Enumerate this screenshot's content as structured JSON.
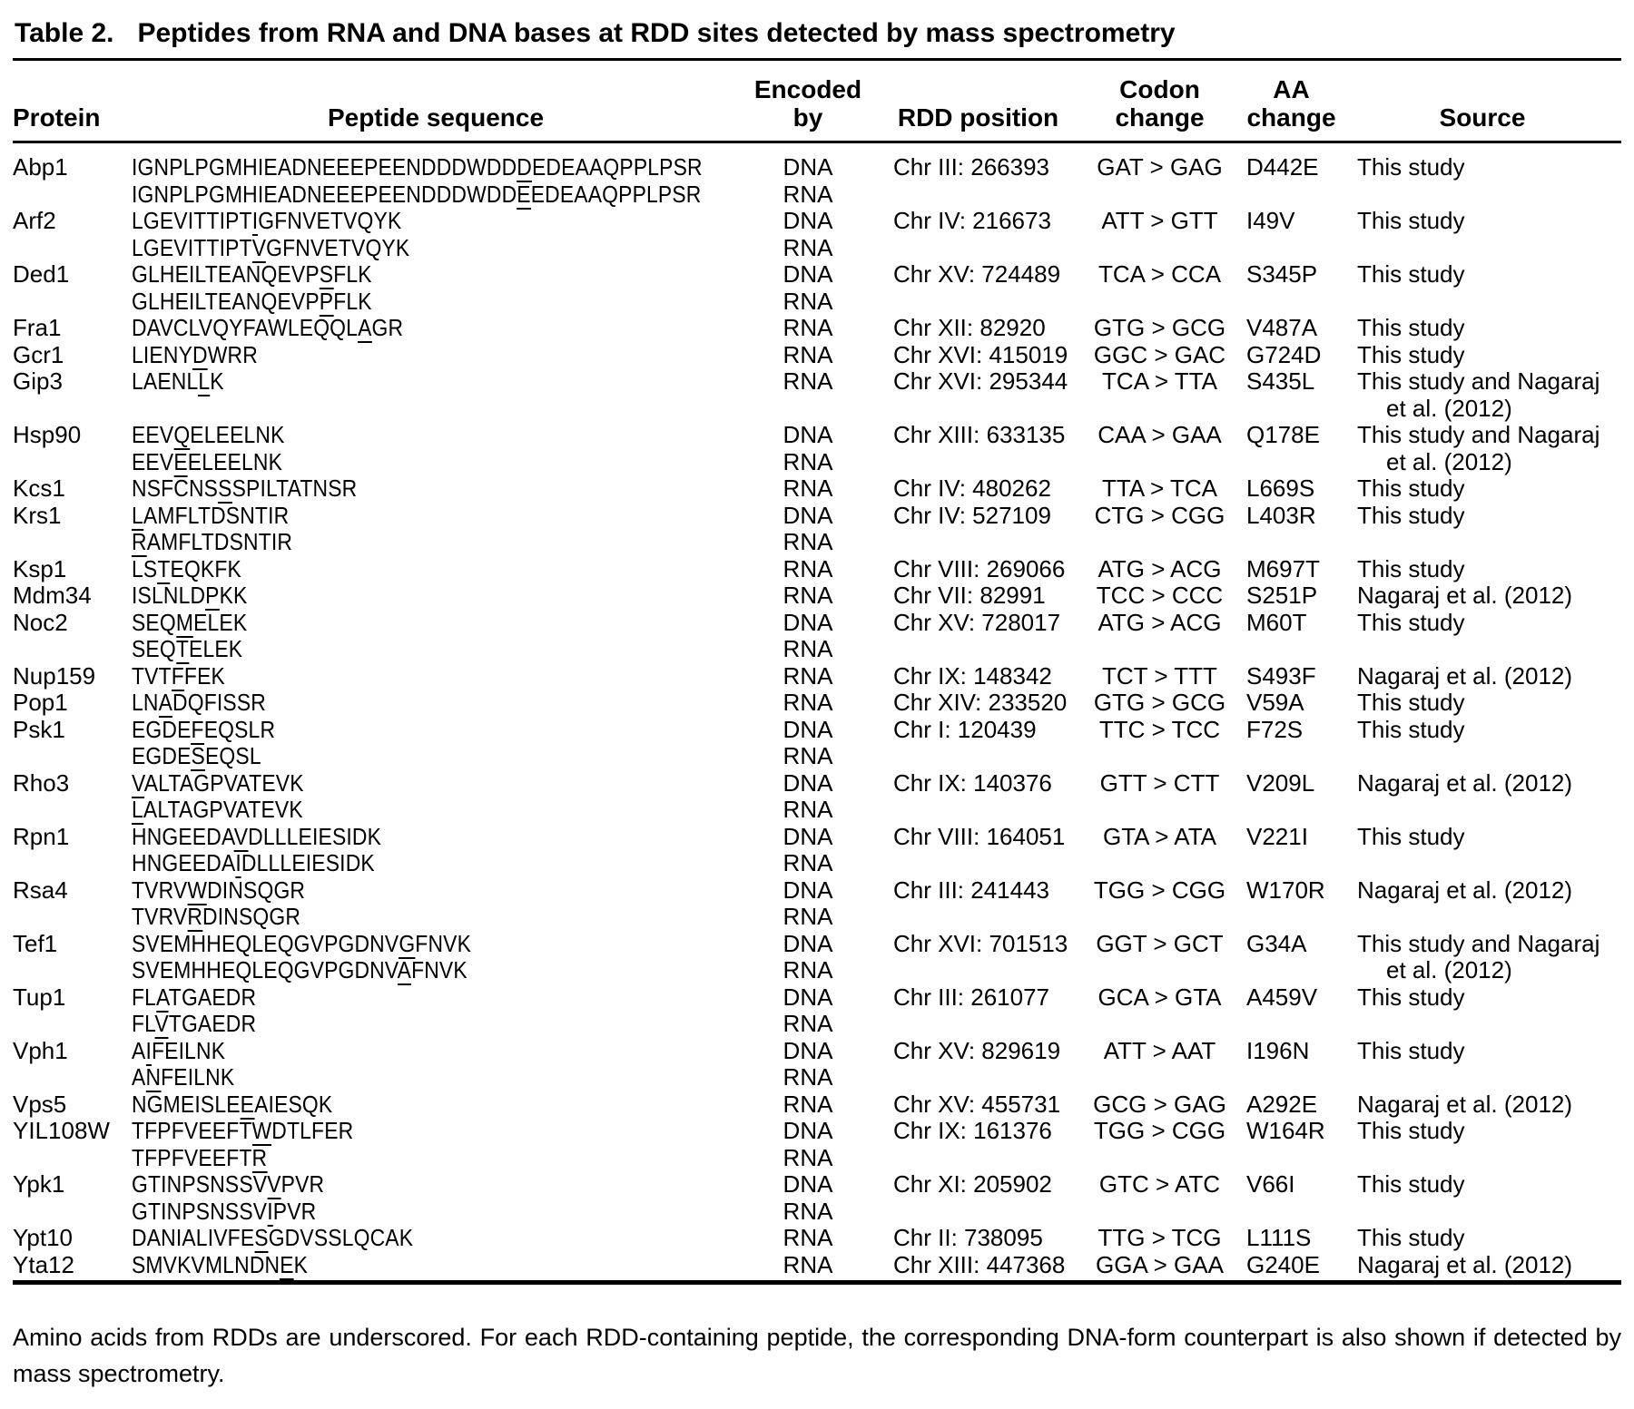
{
  "title": {
    "label": "Table 2.",
    "caption": "Peptides from RNA and DNA bases at RDD sites detected by mass spectrometry"
  },
  "table": {
    "columns": [
      "Protein",
      "Peptide sequence",
      "Encoded by",
      "RDD position",
      "Codon\nchange",
      "AA\nchange",
      "Source"
    ],
    "underline_notation": "residue in [brackets] is underscored (RDD site)",
    "rows": [
      {
        "protein": "Abp1",
        "peptide": "IGNPLPGMHIEADNEEEPEENDDDWDD[D]EDEAAQPPLPSR",
        "encoded_by": "DNA",
        "rdd_position": "Chr III: 266393",
        "codon_change": "GAT > GAG",
        "aa_change": "D442E",
        "source": "This study"
      },
      {
        "protein": "",
        "peptide": "IGNPLPGMHIEADNEEEPEENDDDWDD[E]EDEAAQPPLPSR",
        "encoded_by": "RNA",
        "rdd_position": "",
        "codon_change": "",
        "aa_change": "",
        "source": ""
      },
      {
        "protein": "Arf2",
        "peptide": "LGEVITTIPT[I]GFNVETVQYK",
        "encoded_by": "DNA",
        "rdd_position": "Chr IV: 216673",
        "codon_change": "ATT > GTT",
        "aa_change": "I49V",
        "source": "This study"
      },
      {
        "protein": "",
        "peptide": "LGEVITTIPT[V]GFNVETVQYK",
        "encoded_by": "RNA",
        "rdd_position": "",
        "codon_change": "",
        "aa_change": "",
        "source": ""
      },
      {
        "protein": "Ded1",
        "peptide": "GLHEILTEANQEVP[S]FLK",
        "encoded_by": "DNA",
        "rdd_position": "Chr XV: 724489",
        "codon_change": "TCA > CCA",
        "aa_change": "S345P",
        "source": "This study"
      },
      {
        "protein": "",
        "peptide": "GLHEILTEANQEVP[P]FLK",
        "encoded_by": "RNA",
        "rdd_position": "",
        "codon_change": "",
        "aa_change": "",
        "source": ""
      },
      {
        "protein": "Fra1",
        "peptide": "DAVCLVQYFAWLEQQL[A]GR",
        "encoded_by": "RNA",
        "rdd_position": "Chr XII: 82920",
        "codon_change": "GTG > GCG",
        "aa_change": "V487A",
        "source": "This study"
      },
      {
        "protein": "Gcr1",
        "peptide": "LIENY[D]WRR",
        "encoded_by": "RNA",
        "rdd_position": "Chr XVI: 415019",
        "codon_change": "GGC > GAC",
        "aa_change": "G724D",
        "source": "This study"
      },
      {
        "protein": "Gip3",
        "peptide": "LAENL[L]K",
        "encoded_by": "RNA",
        "rdd_position": "Chr XVI: 295344",
        "codon_change": "TCA > TTA",
        "aa_change": "S435L",
        "source": "This study and Nagaraj\net al. (2012)"
      },
      {
        "protein": "Hsp90",
        "peptide": "EEV[Q]ELEELNK",
        "encoded_by": "DNA",
        "rdd_position": "Chr XIII: 633135",
        "codon_change": "CAA > GAA",
        "aa_change": "Q178E",
        "source": "This study and Nagaraj"
      },
      {
        "protein": "",
        "peptide": "EEV[E]ELEELNK",
        "encoded_by": "RNA",
        "rdd_position": "",
        "codon_change": "",
        "aa_change": "",
        "source": "et al. (2012)",
        "source_continuation": true
      },
      {
        "protein": "Kcs1",
        "peptide": "NSFCNS[S]SPILTATNSR",
        "encoded_by": "RNA",
        "rdd_position": "Chr IV: 480262",
        "codon_change": "TTA > TCA",
        "aa_change": "L669S",
        "source": "This study"
      },
      {
        "protein": "Krs1",
        "peptide": "[L]AMFLTDSNTIR",
        "encoded_by": "DNA",
        "rdd_position": "Chr IV: 527109",
        "codon_change": "CTG > CGG",
        "aa_change": "L403R",
        "source": "This study"
      },
      {
        "protein": "",
        "peptide": "[R]AMFLTDSNTIR",
        "encoded_by": "RNA",
        "rdd_position": "",
        "codon_change": "",
        "aa_change": "",
        "source": ""
      },
      {
        "protein": "Ksp1",
        "peptide": "LS[T]EQKFK",
        "encoded_by": "RNA",
        "rdd_position": "Chr VIII: 269066",
        "codon_change": "ATG > ACG",
        "aa_change": "M697T",
        "source": "This study"
      },
      {
        "protein": "Mdm34",
        "peptide": "ISLNLD[P]KK",
        "encoded_by": "RNA",
        "rdd_position": "Chr VII: 82991",
        "codon_change": "TCC > CCC",
        "aa_change": "S251P",
        "source": "Nagaraj et al. (2012)"
      },
      {
        "protein": "Noc2",
        "peptide": "SEQ[M]ELEK",
        "encoded_by": "DNA",
        "rdd_position": "Chr XV: 728017",
        "codon_change": "ATG > ACG",
        "aa_change": "M60T",
        "source": "This study"
      },
      {
        "protein": "",
        "peptide": "SEQ[T]ELEK",
        "encoded_by": "RNA",
        "rdd_position": "",
        "codon_change": "",
        "aa_change": "",
        "source": ""
      },
      {
        "protein": "Nup159",
        "peptide": "TVT[F]FEK",
        "encoded_by": "RNA",
        "rdd_position": "Chr IX: 148342",
        "codon_change": "TCT > TTT",
        "aa_change": "S493F",
        "source": "Nagaraj et al. (2012)"
      },
      {
        "protein": "Pop1",
        "peptide": "LN[A]DQFISSR",
        "encoded_by": "RNA",
        "rdd_position": "Chr XIV: 233520",
        "codon_change": "GTG > GCG",
        "aa_change": "V59A",
        "source": "This study"
      },
      {
        "protein": "Psk1",
        "peptide": "EGDE[F]EQSLR",
        "encoded_by": "DNA",
        "rdd_position": "Chr I: 120439",
        "codon_change": "TTC > TCC",
        "aa_change": "F72S",
        "source": "This study"
      },
      {
        "protein": "",
        "peptide": "EGDE[S]EQSL",
        "encoded_by": "RNA",
        "rdd_position": "",
        "codon_change": "",
        "aa_change": "",
        "source": ""
      },
      {
        "protein": "Rho3",
        "peptide": "[V]ALTAGPVATEVK",
        "encoded_by": "DNA",
        "rdd_position": "Chr IX: 140376",
        "codon_change": "GTT > CTT",
        "aa_change": "V209L",
        "source": "Nagaraj et al. (2012)"
      },
      {
        "protein": "",
        "peptide": "[L]ALTAGPVATEVK",
        "encoded_by": "RNA",
        "rdd_position": "",
        "codon_change": "",
        "aa_change": "",
        "source": ""
      },
      {
        "protein": "Rpn1",
        "peptide": "HNGEEDA[V]DLLLEIESIDK",
        "encoded_by": "DNA",
        "rdd_position": "Chr VIII: 164051",
        "codon_change": "GTA > ATA",
        "aa_change": "V221I",
        "source": "This study"
      },
      {
        "protein": "",
        "peptide": "HNGEEDA[I]DLLLEIESIDK",
        "encoded_by": "RNA",
        "rdd_position": "",
        "codon_change": "",
        "aa_change": "",
        "source": ""
      },
      {
        "protein": "Rsa4",
        "peptide": "TVRV[W]DINSQGR",
        "encoded_by": "DNA",
        "rdd_position": "Chr III: 241443",
        "codon_change": "TGG > CGG",
        "aa_change": "W170R",
        "source": "Nagaraj et al. (2012)"
      },
      {
        "protein": "",
        "peptide": "TVRV[R]DINSQGR",
        "encoded_by": "RNA",
        "rdd_position": "",
        "codon_change": "",
        "aa_change": "",
        "source": ""
      },
      {
        "protein": "Tef1",
        "peptide": "SVEMHHEQLEQGVPGDNV[G]FNVK",
        "encoded_by": "DNA",
        "rdd_position": "Chr XVI: 701513",
        "codon_change": "GGT > GCT",
        "aa_change": "G34A",
        "source": "This study and Nagaraj"
      },
      {
        "protein": "",
        "peptide": "SVEMHHEQLEQGVPGDNV[A]FNVK",
        "encoded_by": "RNA",
        "rdd_position": "",
        "codon_change": "",
        "aa_change": "",
        "source": "et al. (2012)",
        "source_continuation": true
      },
      {
        "protein": "Tup1",
        "peptide": "FL[A]TGAEDR",
        "encoded_by": "DNA",
        "rdd_position": "Chr III: 261077",
        "codon_change": "GCA > GTA",
        "aa_change": "A459V",
        "source": "This study"
      },
      {
        "protein": "",
        "peptide": "FL[V]TGAEDR",
        "encoded_by": "RNA",
        "rdd_position": "",
        "codon_change": "",
        "aa_change": "",
        "source": ""
      },
      {
        "protein": "Vph1",
        "peptide": "A[I]FEILNK",
        "encoded_by": "DNA",
        "rdd_position": "Chr XV: 829619",
        "codon_change": "ATT > AAT",
        "aa_change": "I196N",
        "source": "This study"
      },
      {
        "protein": "",
        "peptide": "A[N]FEILNK",
        "encoded_by": "RNA",
        "rdd_position": "",
        "codon_change": "",
        "aa_change": "",
        "source": ""
      },
      {
        "protein": "Vps5",
        "peptide": "NGMEISLE[E]AIESQK",
        "encoded_by": "RNA",
        "rdd_position": "Chr XV: 455731",
        "codon_change": "GCG > GAG",
        "aa_change": "A292E",
        "source": "Nagaraj et al. (2012)"
      },
      {
        "protein": "YIL108W",
        "peptide": "TFPFVEEFT[W]DTLFER",
        "encoded_by": "DNA",
        "rdd_position": "Chr IX: 161376",
        "codon_change": "TGG > CGG",
        "aa_change": "W164R",
        "source": "This study"
      },
      {
        "protein": "",
        "peptide": "TFPFVEEFT[R]",
        "encoded_by": "RNA",
        "rdd_position": "",
        "codon_change": "",
        "aa_change": "",
        "source": ""
      },
      {
        "protein": "Ypk1",
        "peptide": "GTINPSNSSV[V]PVR",
        "encoded_by": "DNA",
        "rdd_position": "Chr XI: 205902",
        "codon_change": "GTC > ATC",
        "aa_change": "V66I",
        "source": "This study"
      },
      {
        "protein": "",
        "peptide": "GTINPSNSSV[I]PVR",
        "encoded_by": "RNA",
        "rdd_position": "",
        "codon_change": "",
        "aa_change": "",
        "source": ""
      },
      {
        "protein": "Ypt10",
        "peptide": "DANIALIVFE[S]GDVSSLQCAK",
        "encoded_by": "RNA",
        "rdd_position": "Chr II: 738095",
        "codon_change": "TTG > TCG",
        "aa_change": "L111S",
        "source": "This study"
      },
      {
        "protein": "Yta12",
        "peptide": "SMVKVMLNDN[E]K",
        "encoded_by": "RNA",
        "rdd_position": "Chr XIII: 447368",
        "codon_change": "GGA > GAA",
        "aa_change": "G240E",
        "source": "Nagaraj et al. (2012)"
      }
    ]
  },
  "footnote": "Amino acids from RDDs are underscored. For each RDD-containing peptide, the corresponding DNA-form counterpart is also shown if detected by mass spectrometry."
}
